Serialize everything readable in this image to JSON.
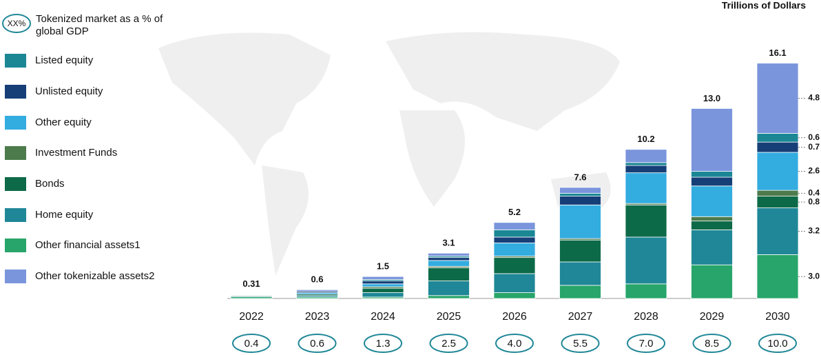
{
  "chart_data": {
    "type": "stacked-bar",
    "unit_label": "Trillions of Dollars",
    "gdp_legend_marker": "XX%",
    "gdp_legend_label": "Tokenized market as a % of global GDP",
    "categories": [
      "2022",
      "2023",
      "2024",
      "2025",
      "2026",
      "2027",
      "2028",
      "2029",
      "2030"
    ],
    "totals": [
      0.31,
      0.6,
      1.5,
      3.1,
      5.2,
      7.6,
      10.2,
      13,
      16.1
    ],
    "total_labels": [
      "0.31",
      "0.6",
      "1.5",
      "3.1",
      "5.2",
      "7.6",
      "10.2",
      "13.0",
      "16.1"
    ],
    "gdp_share": [
      0.4,
      0.6,
      1.3,
      2.5,
      4,
      5.5,
      7,
      8.5,
      10
    ],
    "gdp_share_labels": [
      "0.4",
      "0.6",
      "1.3",
      "2.5",
      "4.0",
      "5.5",
      "7.0",
      "8.5",
      "10.0"
    ],
    "series": [
      {
        "name": "Listed equity",
        "color": "#1b8795",
        "values": [
          0.01,
          0,
          0.1,
          0.1,
          0.5,
          0.2,
          0.2,
          0.4,
          0.6
        ],
        "value_labels": [
          null,
          null,
          null,
          null,
          null,
          null,
          null,
          null,
          "0.6"
        ]
      },
      {
        "name": "Unlisted equity",
        "color": "#163f78",
        "values": [
          0.02,
          0.1,
          0.2,
          0.2,
          0.4,
          0.6,
          0.5,
          0.6,
          0.7
        ],
        "value_labels": [
          null,
          null,
          null,
          null,
          null,
          null,
          null,
          null,
          "0.7"
        ]
      },
      {
        "name": "Other equity",
        "color": "#33ace0",
        "values": [
          0.03,
          0.1,
          0.2,
          0.4,
          0.9,
          2.3,
          2.1,
          2.1,
          2.6
        ],
        "value_labels": [
          null,
          null,
          null,
          null,
          null,
          null,
          null,
          null,
          "2.6"
        ]
      },
      {
        "name": "Investment Funds",
        "color": "#4d7b4c",
        "values": [
          0.02,
          0,
          0.1,
          0.1,
          0.1,
          0.1,
          0.1,
          0.3,
          0.4
        ],
        "value_labels": [
          null,
          null,
          null,
          null,
          null,
          null,
          null,
          null,
          "0.4"
        ]
      },
      {
        "name": "Bonds",
        "color": "#0d6a48",
        "values": [
          0.05,
          0.1,
          0.3,
          0.9,
          1.1,
          1.5,
          2.2,
          0.6,
          0.8
        ],
        "value_labels": [
          null,
          null,
          null,
          null,
          null,
          null,
          null,
          null,
          "0.8"
        ]
      },
      {
        "name": "Home equity",
        "color": "#1f8797",
        "values": [
          0.05,
          0.1,
          0.3,
          1.0,
          1.3,
          1.6,
          3.2,
          2.4,
          3.2
        ],
        "value_labels": [
          null,
          null,
          null,
          null,
          null,
          null,
          null,
          null,
          "3.2"
        ]
      },
      {
        "name": "Other financial assets1",
        "color": "#28a56a",
        "values": [
          0.11,
          0.1,
          0.1,
          0.2,
          0.4,
          0.9,
          1.0,
          2.3,
          3.0
        ],
        "value_labels": [
          null,
          null,
          null,
          null,
          null,
          null,
          null,
          null,
          "3.0"
        ]
      },
      {
        "name": "Other tokenizable assets2",
        "color": "#7a95dc",
        "values": [
          0.02,
          0.1,
          0.2,
          0.2,
          0.5,
          0.4,
          0.9,
          4.3,
          4.8
        ],
        "value_labels": [
          null,
          null,
          null,
          null,
          null,
          null,
          null,
          null,
          "4.8"
        ]
      }
    ]
  }
}
